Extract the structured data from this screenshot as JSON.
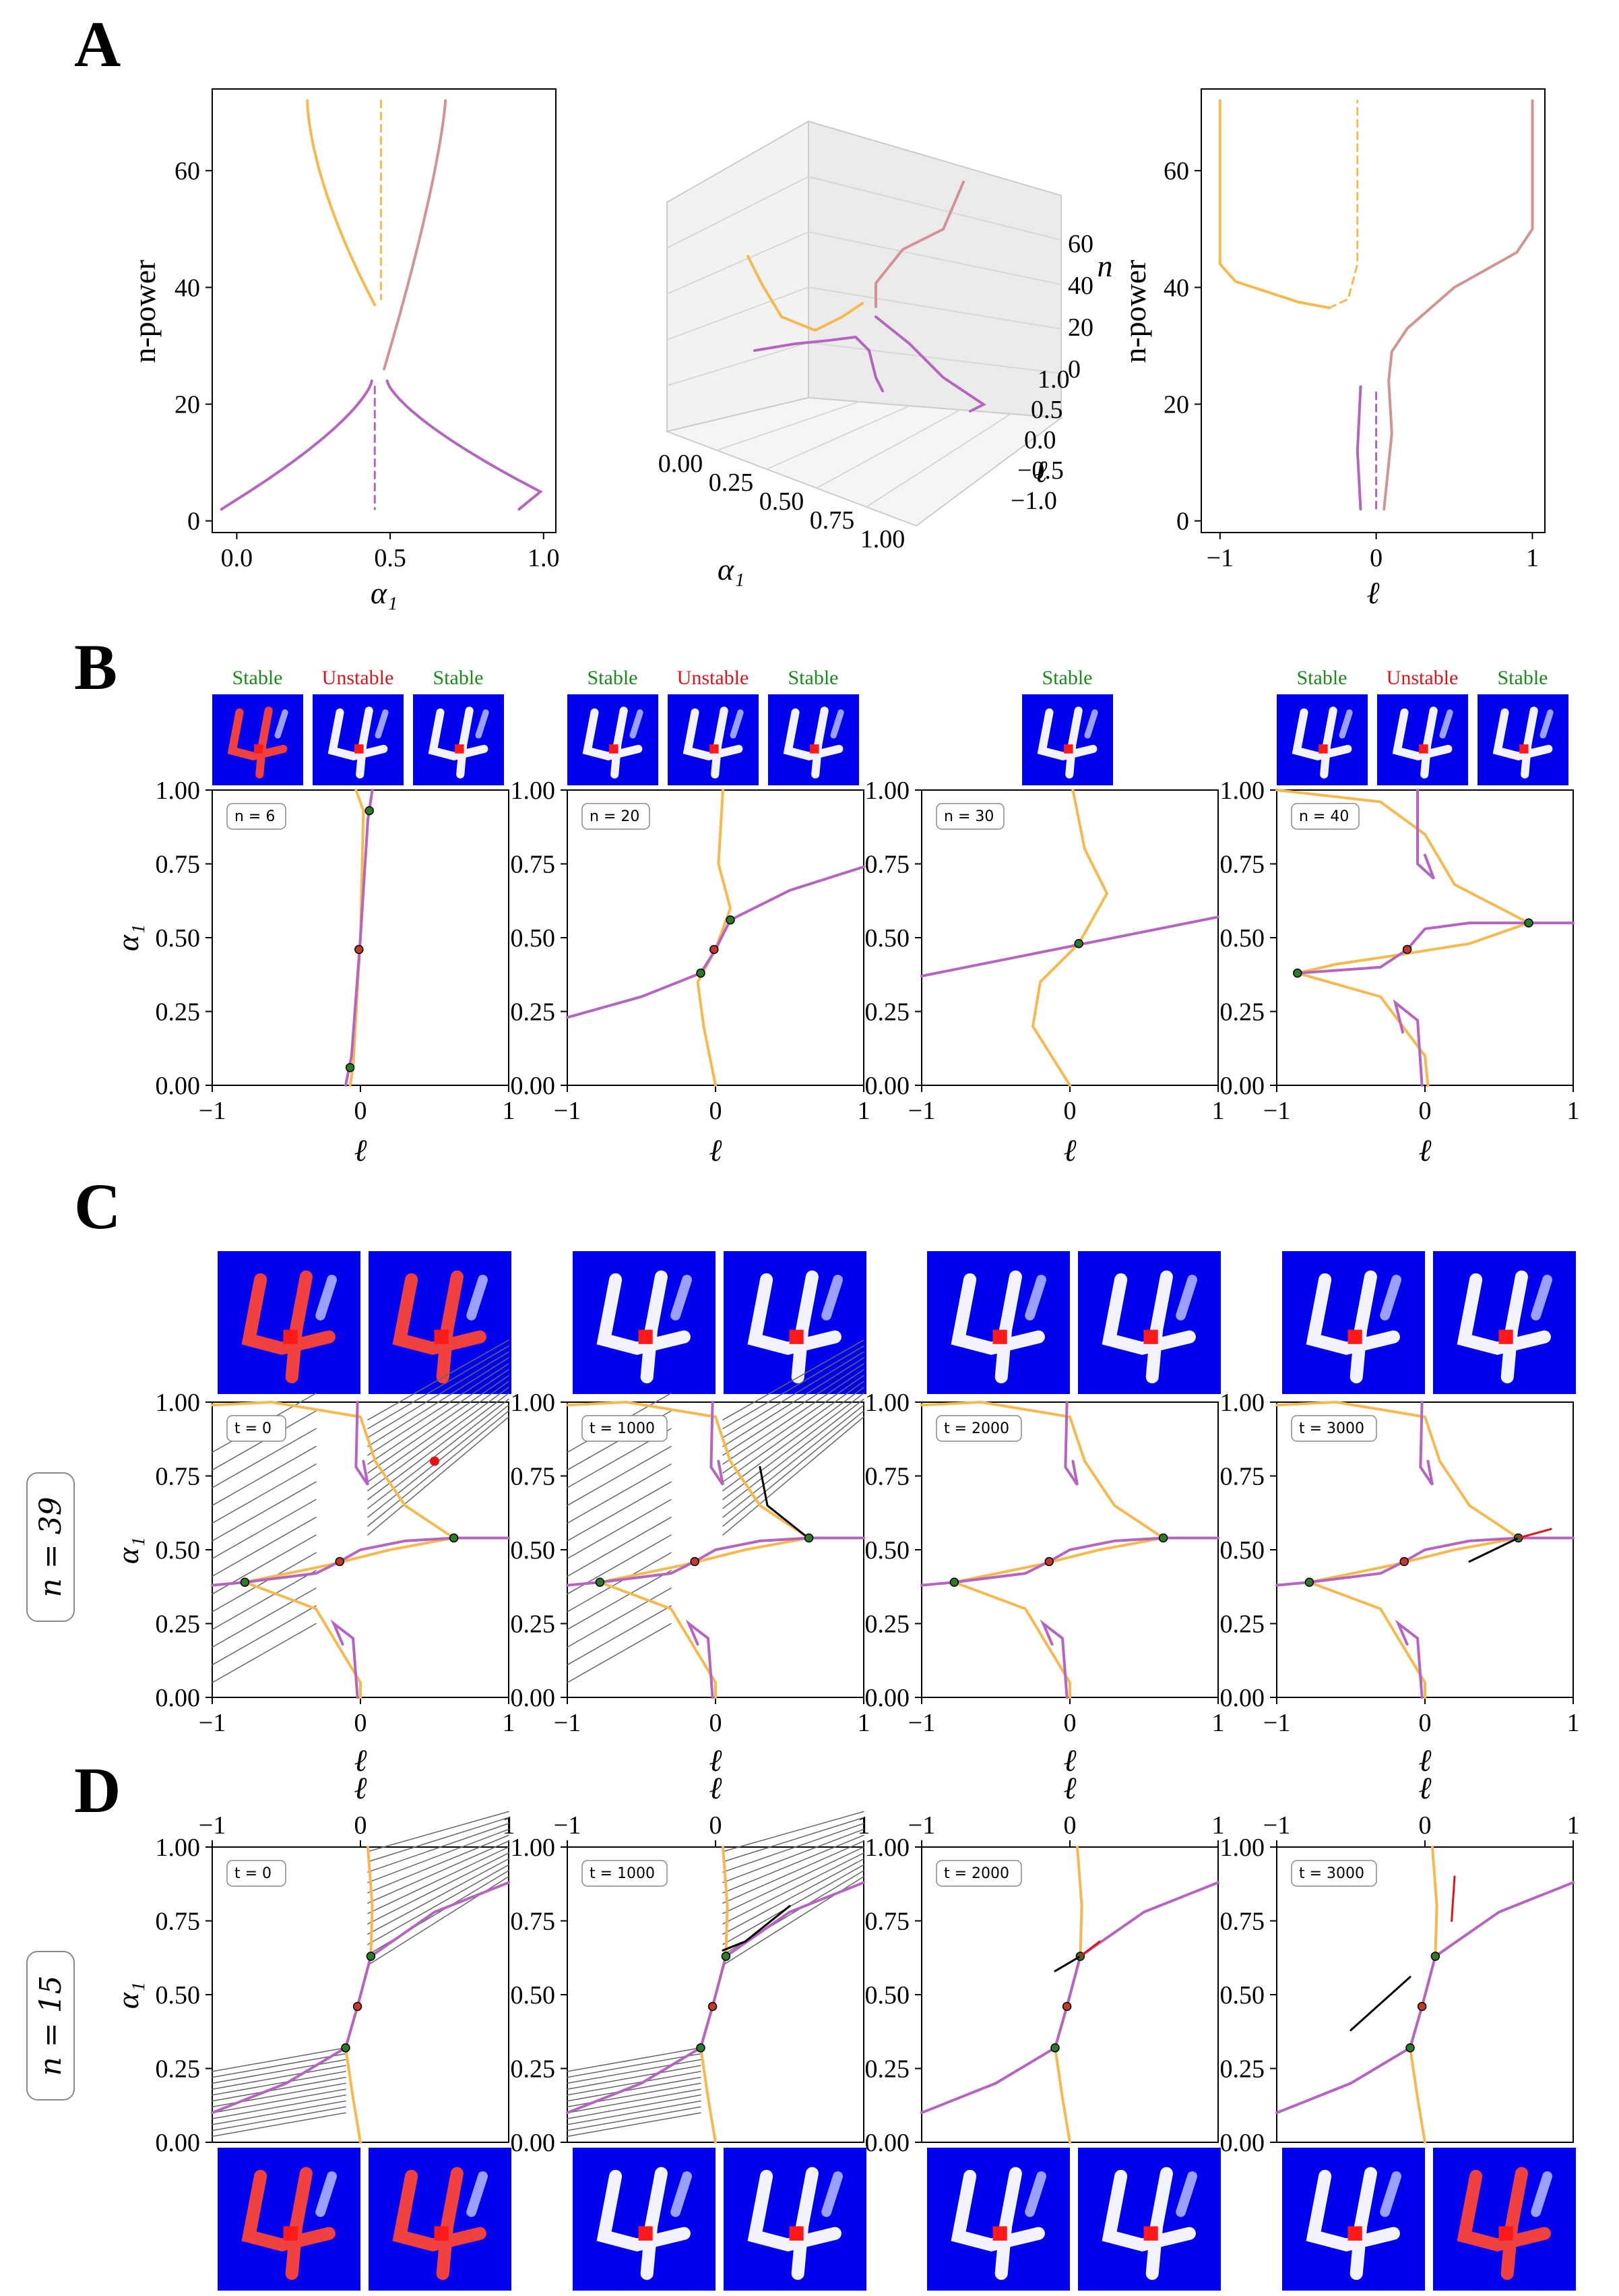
{
  "panels": {
    "A": {
      "letter": "A",
      "left": {
        "xlabel": "α₁",
        "ylabel": "n-power",
        "xticks": [
          "0.0",
          "0.5",
          "1.0"
        ],
        "yticks": [
          "0",
          "20",
          "40",
          "60"
        ]
      },
      "middle": {
        "xlabel": "α₁",
        "ylabel": "ℓ",
        "zlabel": "n",
        "xticks": [
          "0.00",
          "0.25",
          "0.50",
          "0.75",
          "1.00"
        ],
        "yticks": [
          "−1.0",
          "−0.5",
          "0.0",
          "0.5",
          "1.0"
        ],
        "zticks": [
          "0",
          "20",
          "40",
          "60"
        ]
      },
      "right": {
        "xlabel": "ℓ",
        "ylabel": "n-power",
        "xticks": [
          "−1",
          "0",
          "1"
        ],
        "yticks": [
          "0",
          "20",
          "40",
          "60"
        ]
      }
    },
    "B": {
      "letter": "B",
      "stability_labels": {
        "stable": "Stable",
        "unstable": "Unstable"
      },
      "insets": [
        "n = 6",
        "n = 20",
        "n = 30",
        "n = 40"
      ],
      "xlabel": "ℓ",
      "ylabel": "α₁",
      "xticks": [
        "−1",
        "0",
        "1"
      ],
      "yticks": [
        "0.00",
        "0.25",
        "0.50",
        "0.75",
        "1.00"
      ]
    },
    "C": {
      "letter": "C",
      "row_label": "n = 39",
      "insets": [
        "t = 0",
        "t = 1000",
        "t = 2000",
        "t = 3000"
      ],
      "xlabel": "ℓ",
      "ylabel": "α₁",
      "xticks": [
        "−1",
        "0",
        "1"
      ],
      "yticks": [
        "0.00",
        "0.25",
        "0.50",
        "0.75",
        "1.00"
      ]
    },
    "D": {
      "letter": "D",
      "row_label": "n = 15",
      "insets": [
        "t = 0",
        "t = 1000",
        "t = 2000",
        "t = 3000"
      ],
      "xlabel": "ℓ",
      "ylabel": "α₁",
      "xticks": [
        "−1",
        "0",
        "1"
      ],
      "yticks": [
        "0.00",
        "0.25",
        "0.50",
        "0.75",
        "1.00"
      ]
    }
  },
  "colors": {
    "orange": "#f5b94f",
    "purple": "#b565c0",
    "mauve": "#d19493",
    "stable_point": "#2d7a2d",
    "unstable_point": "#c0392b",
    "image_bg": "#0000ee",
    "digit_red": "#f04040"
  },
  "chart_data": [
    {
      "panel": "B",
      "type": "line",
      "description_key": "nullclines",
      "plots": [
        {
          "inset": "n = 6",
          "fixed_points": [
            {
              "l": 0.06,
              "a": 0.93,
              "stability": "stable"
            },
            {
              "l": -0.01,
              "a": 0.46,
              "stability": "unstable"
            },
            {
              "l": -0.07,
              "a": 0.06,
              "stability": "stable"
            }
          ]
        },
        {
          "inset": "n = 20",
          "fixed_points": [
            {
              "l": 0.1,
              "a": 0.56,
              "stability": "stable"
            },
            {
              "l": -0.01,
              "a": 0.46,
              "stability": "unstable"
            },
            {
              "l": -0.1,
              "a": 0.38,
              "stability": "stable"
            }
          ]
        },
        {
          "inset": "n = 30",
          "fixed_points": [
            {
              "l": 0.06,
              "a": 0.48,
              "stability": "stable"
            }
          ]
        },
        {
          "inset": "n = 40",
          "fixed_points": [
            {
              "l": 0.7,
              "a": 0.55,
              "stability": "stable"
            },
            {
              "l": -0.12,
              "a": 0.46,
              "stability": "unstable"
            },
            {
              "l": -0.86,
              "a": 0.38,
              "stability": "stable"
            }
          ]
        }
      ],
      "xlim": [
        -1,
        1
      ],
      "ylim": [
        0,
        1
      ]
    },
    {
      "panel": "C",
      "type": "line",
      "plots": [
        {
          "inset": "t = 0"
        },
        {
          "inset": "t = 1000"
        },
        {
          "inset": "t = 2000"
        },
        {
          "inset": "t = 3000"
        }
      ],
      "fixed_points": [
        {
          "l": 0.63,
          "a": 0.54,
          "stability": "stable"
        },
        {
          "l": -0.14,
          "a": 0.46,
          "stability": "unstable"
        },
        {
          "l": -0.78,
          "a": 0.39,
          "stability": "stable"
        }
      ],
      "xlim": [
        -1,
        1
      ],
      "ylim": [
        0,
        1
      ]
    },
    {
      "panel": "D",
      "type": "line",
      "plots": [
        {
          "inset": "t = 0"
        },
        {
          "inset": "t = 1000"
        },
        {
          "inset": "t = 2000"
        },
        {
          "inset": "t = 3000"
        }
      ],
      "fixed_points": [
        {
          "l": 0.07,
          "a": 0.63,
          "stability": "stable"
        },
        {
          "l": -0.02,
          "a": 0.46,
          "stability": "unstable"
        },
        {
          "l": -0.1,
          "a": 0.32,
          "stability": "stable"
        }
      ],
      "xlim": [
        -1,
        1
      ],
      "ylim": [
        0,
        1
      ]
    }
  ]
}
